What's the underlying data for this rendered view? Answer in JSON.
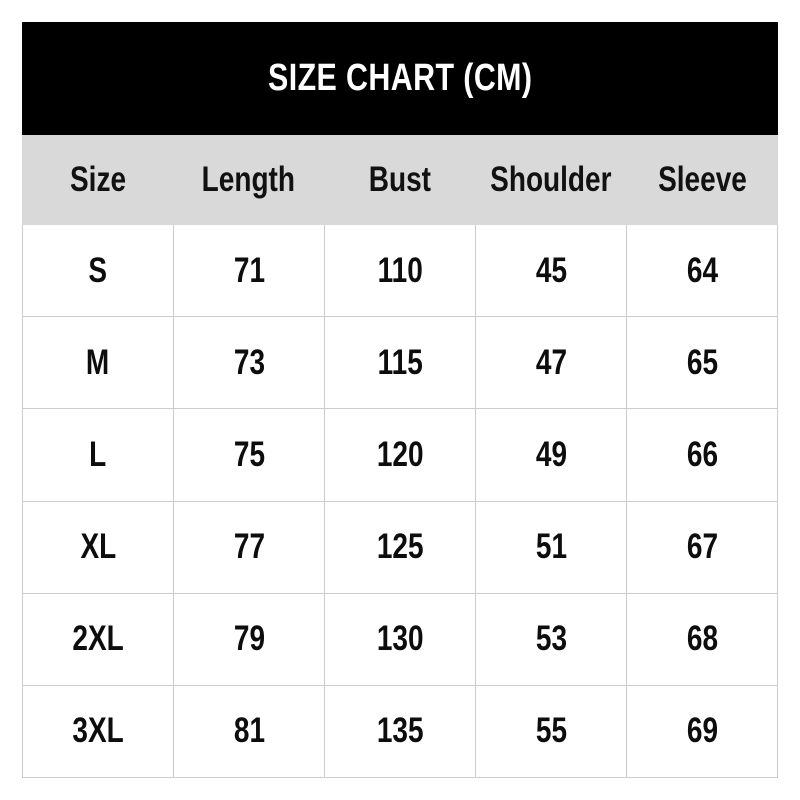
{
  "title": "SIZE CHART (CM)",
  "table": {
    "headers": [
      "Size",
      "Length",
      "Bust",
      "Shoulder",
      "Sleeve"
    ],
    "rows": [
      [
        "S",
        "71",
        "110",
        "45",
        "64"
      ],
      [
        "M",
        "73",
        "115",
        "47",
        "65"
      ],
      [
        "L",
        "75",
        "120",
        "49",
        "66"
      ],
      [
        "XL",
        "77",
        "125",
        "51",
        "67"
      ],
      [
        "2XL",
        "79",
        "130",
        "53",
        "68"
      ],
      [
        "3XL",
        "81",
        "135",
        "55",
        "69"
      ]
    ]
  },
  "colors": {
    "page_bg": "#ffffff",
    "title_bar_bg": "#000000",
    "title_text": "#ffffff",
    "header_row_bg": "#d9d9d9",
    "cell_text": "#0d0d0d",
    "grid_border": "#cccccc"
  },
  "chart_data": {
    "type": "table",
    "title": "SIZE CHART (CM)",
    "unit": "cm",
    "columns": [
      "Size",
      "Length",
      "Bust",
      "Shoulder",
      "Sleeve"
    ],
    "rows": [
      {
        "size": "S",
        "length": 71,
        "bust": 110,
        "shoulder": 45,
        "sleeve": 64
      },
      {
        "size": "M",
        "length": 73,
        "bust": 115,
        "shoulder": 47,
        "sleeve": 65
      },
      {
        "size": "L",
        "length": 75,
        "bust": 120,
        "shoulder": 49,
        "sleeve": 66
      },
      {
        "size": "XL",
        "length": 77,
        "bust": 125,
        "shoulder": 51,
        "sleeve": 67
      },
      {
        "size": "2XL",
        "length": 79,
        "bust": 130,
        "shoulder": 53,
        "sleeve": 68
      },
      {
        "size": "3XL",
        "length": 81,
        "bust": 135,
        "shoulder": 55,
        "sleeve": 69
      }
    ]
  }
}
